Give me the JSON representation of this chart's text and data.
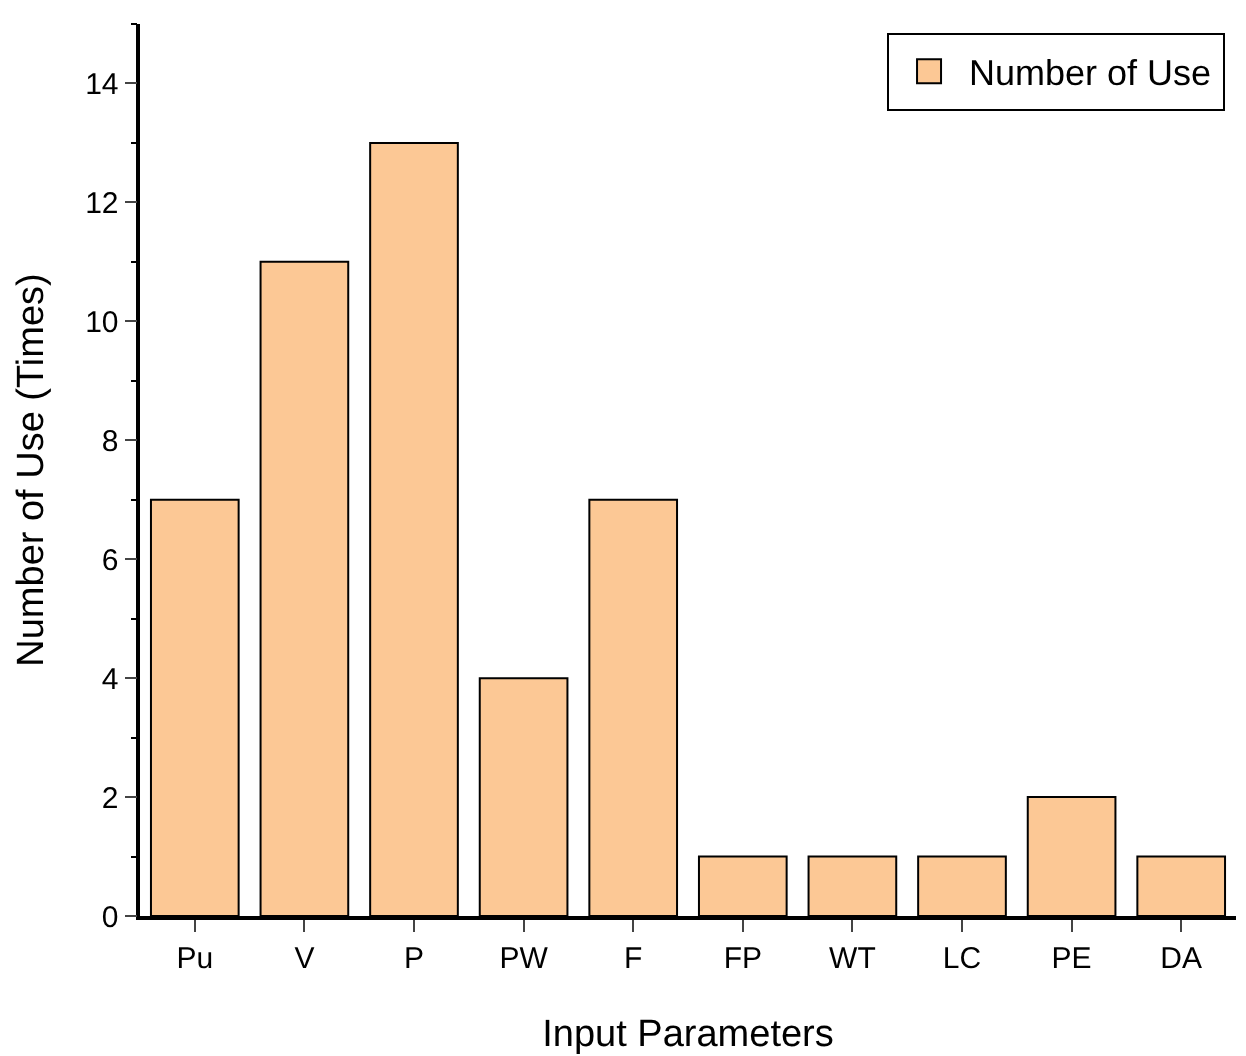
{
  "chart_data": {
    "type": "bar",
    "xlabel": "Input Parameters",
    "ylabel": "Number of Use (Times)",
    "categories": [
      "Pu",
      "V",
      "P",
      "PW",
      "F",
      "FP",
      "WT",
      "LC",
      "PE",
      "DA"
    ],
    "series": [
      {
        "name": "Number of Use",
        "color": "#fcc895",
        "values": [
          7,
          11,
          13,
          4,
          7,
          1,
          1,
          1,
          2,
          1
        ]
      }
    ],
    "ylim": [
      0,
      15
    ],
    "yticks": [
      0,
      2,
      4,
      6,
      8,
      10,
      12,
      14
    ],
    "grid": false,
    "legend": "top right"
  }
}
